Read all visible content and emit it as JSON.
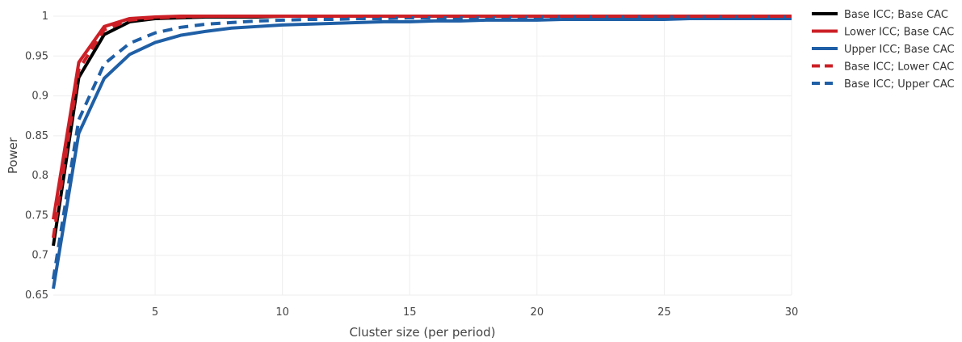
{
  "chart_data": {
    "type": "line",
    "title": "",
    "xlabel": "Cluster size (per period)",
    "ylabel": "Power",
    "xlim": [
      1,
      30
    ],
    "ylim": [
      0.65,
      1.0
    ],
    "xticks": [
      5,
      10,
      15,
      20,
      25,
      30
    ],
    "yticks": [
      0.65,
      0.7,
      0.75,
      0.8,
      0.85,
      0.9,
      0.95,
      1
    ],
    "ytick_labels": [
      "0.65",
      "0.7",
      "0.75",
      "0.8",
      "0.85",
      "0.9",
      "0.95",
      "1"
    ],
    "grid": true,
    "legend_position": "right",
    "x": [
      1,
      2,
      3,
      4,
      5,
      6,
      7,
      8,
      9,
      10,
      11,
      12,
      13,
      14,
      15,
      16,
      17,
      18,
      19,
      20,
      21,
      22,
      23,
      24,
      25,
      26,
      27,
      28,
      29,
      30
    ],
    "series": [
      {
        "name": "Base ICC; Base CAC",
        "color": "#000000",
        "dash": "solid",
        "values": [
          0.712,
          0.923,
          0.977,
          0.993,
          0.997,
          0.998,
          0.999,
          0.999,
          0.999,
          1.0,
          1.0,
          1.0,
          1.0,
          1.0,
          1.0,
          1.0,
          1.0,
          1.0,
          1.0,
          1.0,
          1.0,
          1.0,
          1.0,
          1.0,
          1.0,
          1.0,
          1.0,
          1.0,
          1.0,
          1.0
        ]
      },
      {
        "name": "Lower ICC; Base CAC",
        "color": "#cc1f26",
        "dash": "solid",
        "values": [
          0.745,
          0.942,
          0.987,
          0.997,
          0.999,
          1.0,
          1.0,
          1.0,
          1.0,
          1.0,
          1.0,
          1.0,
          1.0,
          1.0,
          1.0,
          1.0,
          1.0,
          1.0,
          1.0,
          1.0,
          1.0,
          1.0,
          1.0,
          1.0,
          1.0,
          1.0,
          1.0,
          1.0,
          1.0,
          1.0
        ]
      },
      {
        "name": "Upper ICC; Base CAC",
        "color": "#1f5fa6",
        "dash": "solid",
        "values": [
          0.658,
          0.853,
          0.922,
          0.952,
          0.967,
          0.976,
          0.981,
          0.985,
          0.987,
          0.989,
          0.99,
          0.991,
          0.992,
          0.993,
          0.993,
          0.994,
          0.994,
          0.995,
          0.995,
          0.995,
          0.996,
          0.996,
          0.996,
          0.996,
          0.996,
          0.997,
          0.997,
          0.997,
          0.997,
          0.997
        ]
      },
      {
        "name": "Base ICC; Lower CAC",
        "color": "#cc1f26",
        "dash": "dash",
        "values": [
          0.722,
          0.933,
          0.983,
          0.995,
          0.998,
          0.999,
          1.0,
          1.0,
          1.0,
          1.0,
          1.0,
          1.0,
          1.0,
          1.0,
          1.0,
          1.0,
          1.0,
          1.0,
          1.0,
          1.0,
          1.0,
          1.0,
          1.0,
          1.0,
          1.0,
          1.0,
          1.0,
          1.0,
          1.0,
          1.0
        ]
      },
      {
        "name": "Base ICC; Upper CAC",
        "color": "#1f5fa6",
        "dash": "dash",
        "values": [
          0.67,
          0.87,
          0.94,
          0.966,
          0.979,
          0.986,
          0.99,
          0.992,
          0.994,
          0.995,
          0.996,
          0.996,
          0.997,
          0.997,
          0.998,
          0.998,
          0.998,
          0.998,
          0.998,
          0.999,
          0.999,
          0.999,
          0.999,
          0.999,
          0.999,
          0.999,
          0.999,
          0.999,
          0.999,
          0.999
        ]
      }
    ]
  }
}
